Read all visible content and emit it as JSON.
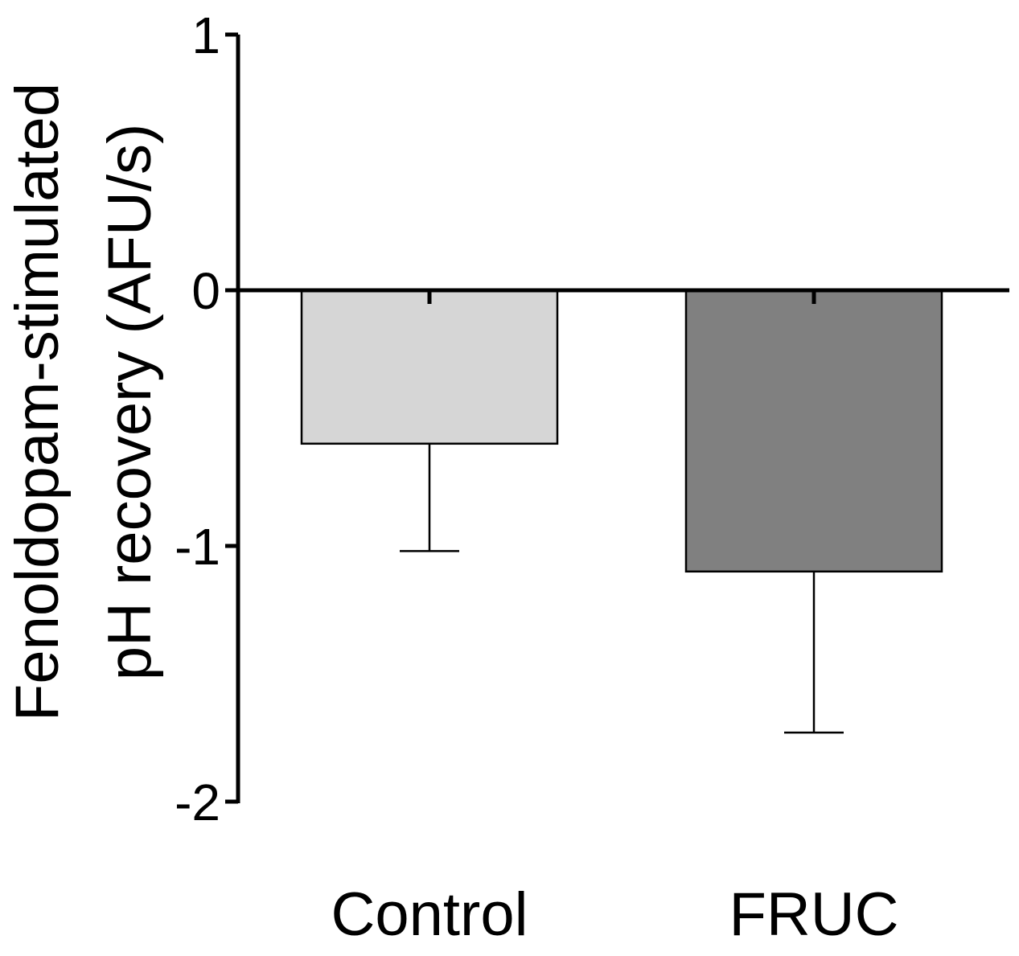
{
  "chart_data": {
    "type": "bar",
    "title": "",
    "xlabel": "",
    "ylabel_lines": [
      "Fenoldopam-stimulated",
      "pH recovery (AFU/s)"
    ],
    "categories": [
      "Control",
      "FRUC"
    ],
    "values": [
      -0.6,
      -1.1
    ],
    "error_bars": [
      0.42,
      0.63
    ],
    "bar_colors": [
      "#d6d6d6",
      "#808080"
    ],
    "ylim": [
      -2,
      1
    ],
    "yticks": [
      1,
      0,
      -1,
      -2
    ],
    "ytick_labels": [
      "1",
      "0",
      "-1",
      "-2"
    ],
    "grid": false,
    "legend": "none"
  }
}
